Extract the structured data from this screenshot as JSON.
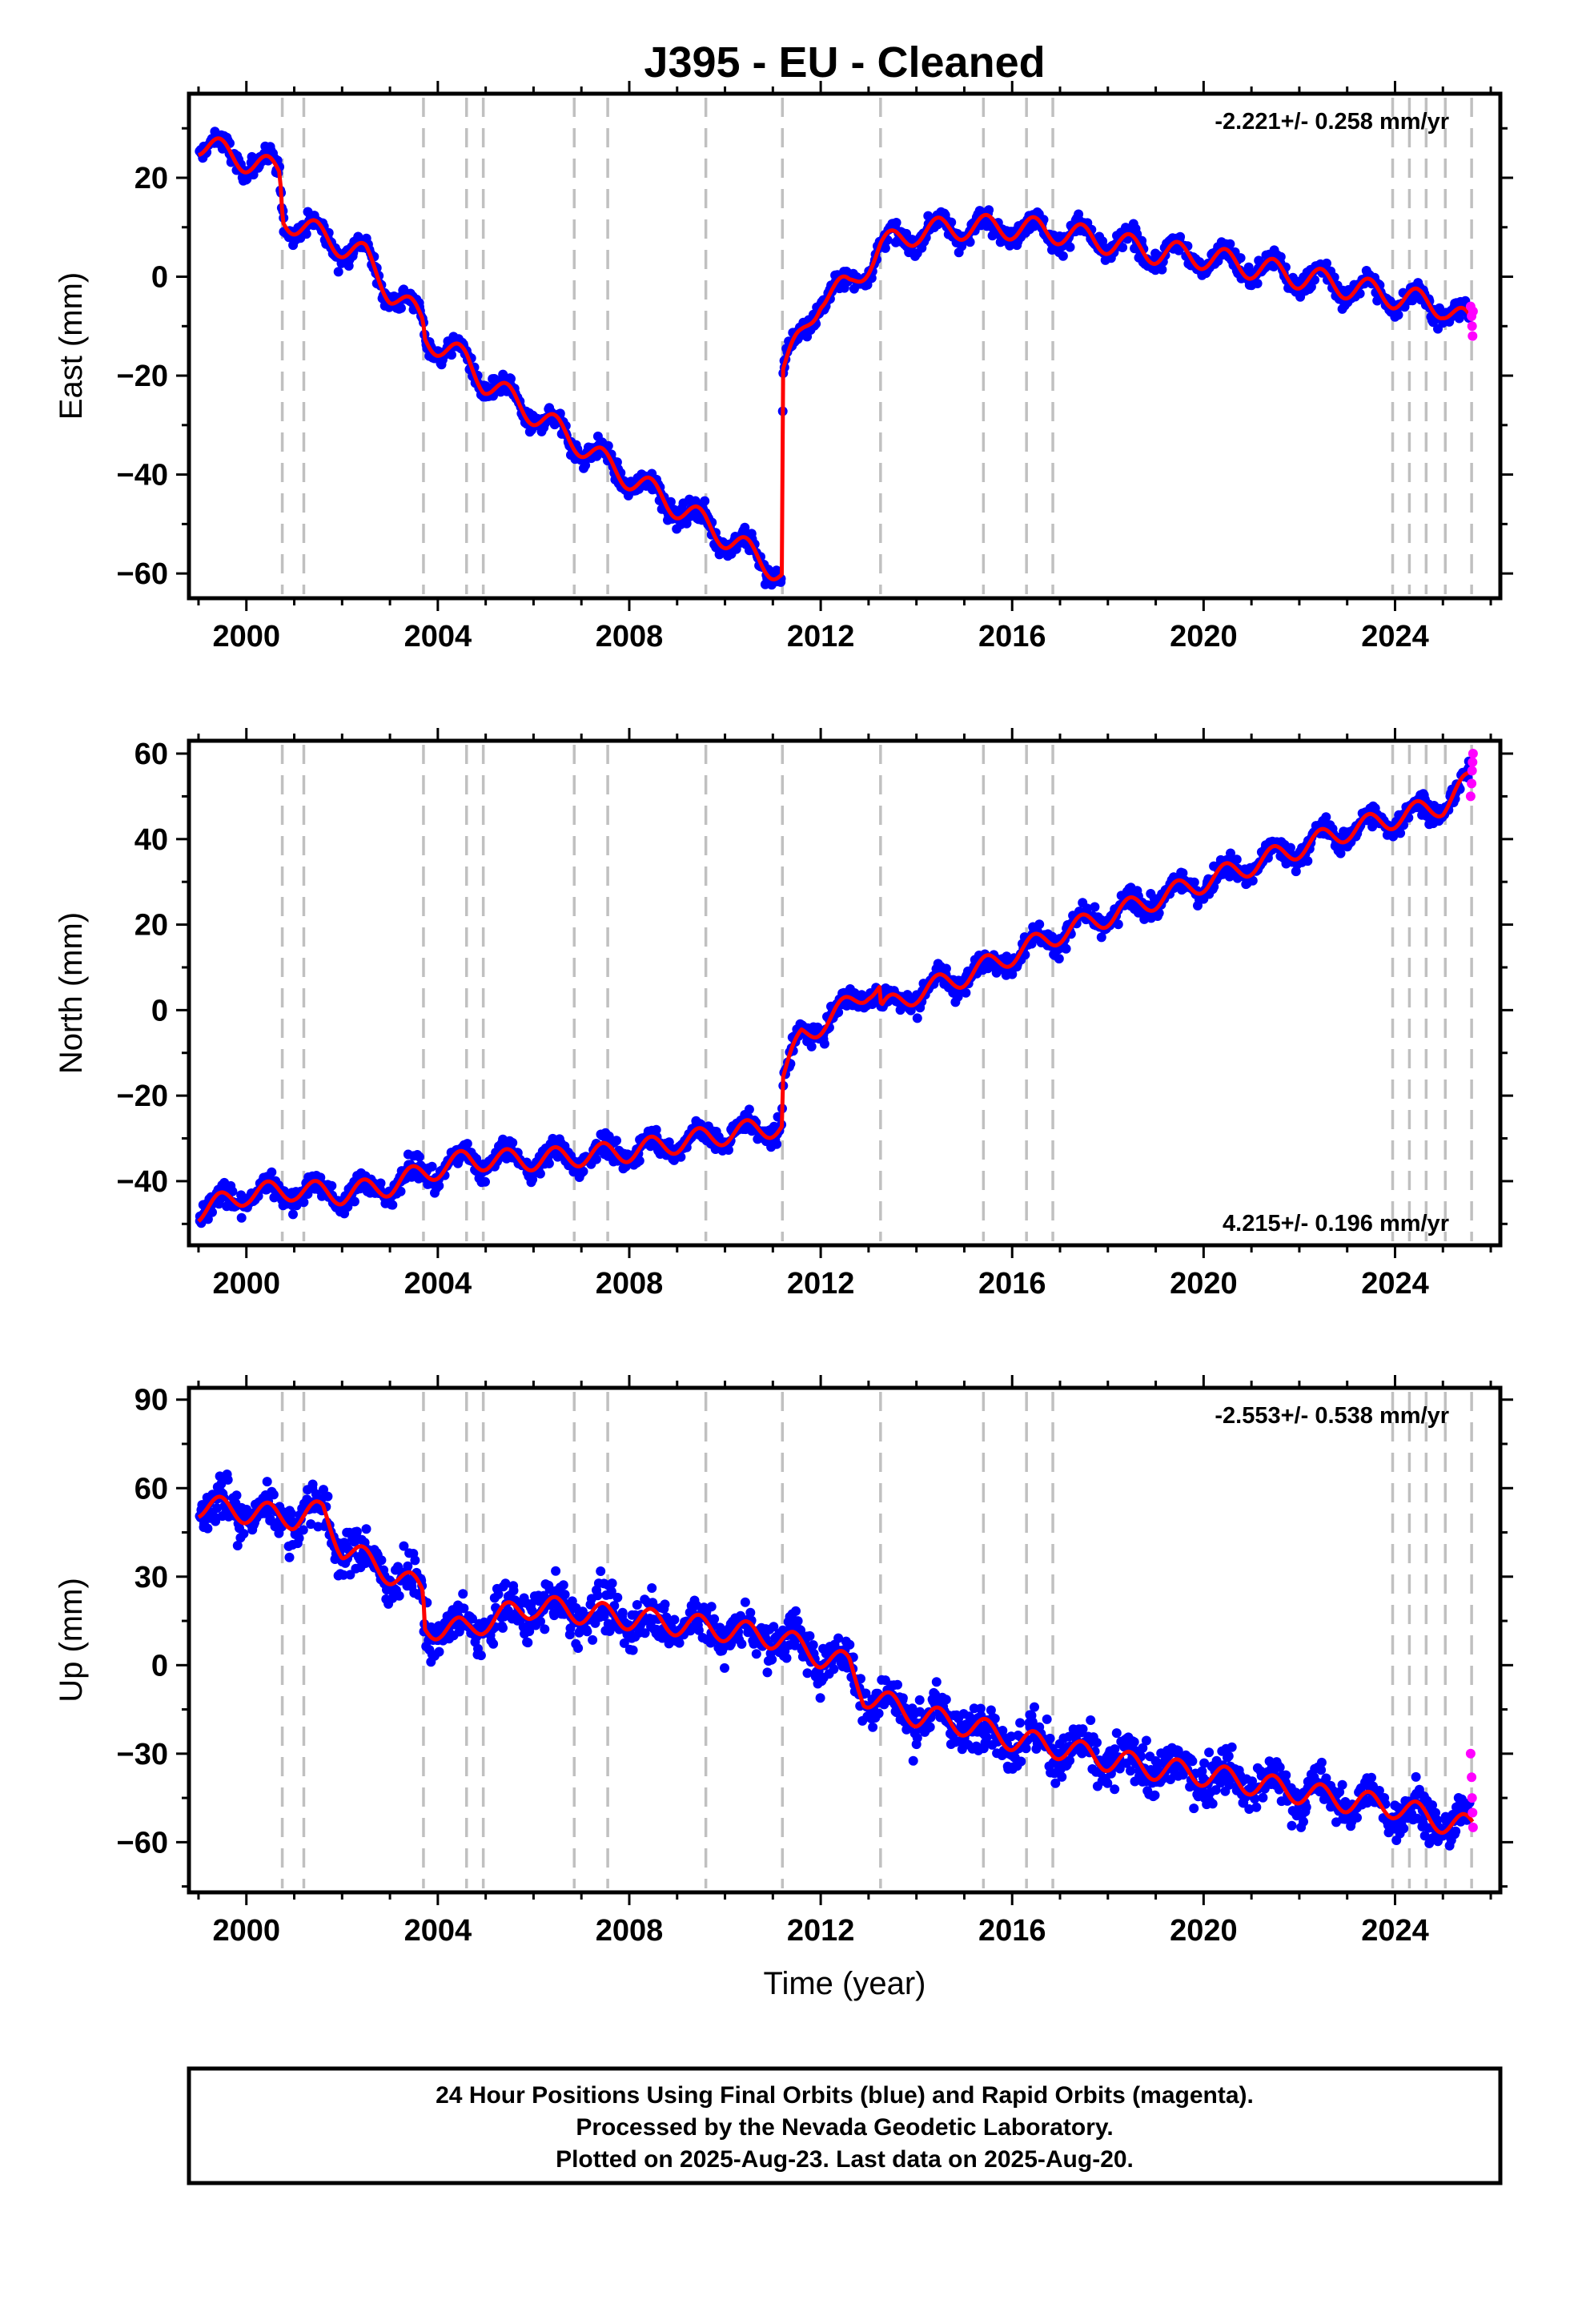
{
  "title": "J395  - EU - Cleaned",
  "x_axis_label": "Time (year)",
  "footer": {
    "lines": [
      "24 Hour Positions Using Final Orbits (blue) and Rapid Orbits (magenta).",
      "Processed by the Nevada Geodetic Laboratory.",
      "Plotted on 2025-Aug-23. Last data on 2025-Aug-20."
    ]
  },
  "colors": {
    "final_orbits": "#0000ff",
    "rapid_orbits": "#ff00ff",
    "model": "#ff0000",
    "event_lines": "#c0c0c0"
  },
  "chart_data": [
    {
      "type": "scatter",
      "component": "East",
      "ylabel": "East (mm)",
      "xlim": [
        1998.8,
        2026.2
      ],
      "ylim": [
        -65,
        37
      ],
      "xticks": [
        2000,
        2004,
        2008,
        2012,
        2016,
        2020,
        2024
      ],
      "yticks": [
        -60,
        -40,
        -20,
        0,
        20
      ],
      "rate_label": "-2.221+/- 0.258 mm/yr",
      "rate_position": "top-right",
      "grid": false,
      "event_lines_years": [
        2000.75,
        2001.2,
        2003.7,
        2004.6,
        2004.95,
        2006.85,
        2007.55,
        2009.6,
        2011.2,
        2013.25,
        2015.4,
        2016.3,
        2016.85,
        2023.95,
        2024.3,
        2024.65,
        2025.05,
        2025.6
      ],
      "model_trend": [
        {
          "x": 1999.0,
          "y": 27
        },
        {
          "x": 2000.7,
          "y": 21
        },
        {
          "x": 2000.76,
          "y": 12
        },
        {
          "x": 2002.5,
          "y": 4
        },
        {
          "x": 2003.0,
          "y": -3
        },
        {
          "x": 2003.7,
          "y": -9
        },
        {
          "x": 2003.71,
          "y": -12
        },
        {
          "x": 2004.6,
          "y": -17
        },
        {
          "x": 2004.95,
          "y": -21
        },
        {
          "x": 2006.85,
          "y": -33
        },
        {
          "x": 2007.55,
          "y": -38
        },
        {
          "x": 2009.6,
          "y": -50
        },
        {
          "x": 2011.19,
          "y": -60
        },
        {
          "x": 2011.21,
          "y": -19
        },
        {
          "x": 2011.6,
          "y": -12
        },
        {
          "x": 2012.0,
          "y": -4
        },
        {
          "x": 2012.6,
          "y": -2
        },
        {
          "x": 2013.25,
          "y": 6
        },
        {
          "x": 2014.0,
          "y": 9
        },
        {
          "x": 2015.0,
          "y": 10
        },
        {
          "x": 2016.0,
          "y": 10
        },
        {
          "x": 2017.0,
          "y": 9
        },
        {
          "x": 2018.0,
          "y": 7
        },
        {
          "x": 2019.0,
          "y": 5
        },
        {
          "x": 2020.0,
          "y": 4
        },
        {
          "x": 2021.0,
          "y": 2
        },
        {
          "x": 2022.0,
          "y": 0
        },
        {
          "x": 2023.0,
          "y": -2
        },
        {
          "x": 2024.0,
          "y": -4
        },
        {
          "x": 2025.0,
          "y": -6
        },
        {
          "x": 2025.6,
          "y": -10
        }
      ],
      "scatter_std_mm": 1.8,
      "seasonal_amp_mm": 2.5,
      "rapid_points": [
        {
          "x": 2025.58,
          "y": -6
        },
        {
          "x": 2025.6,
          "y": -8
        },
        {
          "x": 2025.61,
          "y": -10
        },
        {
          "x": 2025.62,
          "y": -12
        },
        {
          "x": 2025.63,
          "y": -7
        }
      ]
    },
    {
      "type": "scatter",
      "component": "North",
      "ylabel": "North (mm)",
      "xlim": [
        1998.8,
        2026.2
      ],
      "ylim": [
        -55,
        63
      ],
      "xticks": [
        2000,
        2004,
        2008,
        2012,
        2016,
        2020,
        2024
      ],
      "yticks": [
        -40,
        -20,
        0,
        20,
        40,
        60
      ],
      "rate_label": "4.215+/- 0.196 mm/yr",
      "rate_position": "bottom-right",
      "grid": false,
      "event_lines_years": [
        2000.75,
        2001.2,
        2003.7,
        2004.6,
        2004.95,
        2006.85,
        2007.55,
        2009.6,
        2011.2,
        2013.25,
        2015.4,
        2016.3,
        2016.85,
        2023.95,
        2024.3,
        2024.65,
        2025.05,
        2025.6
      ],
      "model_trend": [
        {
          "x": 1999.0,
          "y": -47
        },
        {
          "x": 2000.0,
          "y": -43
        },
        {
          "x": 2001.0,
          "y": -42
        },
        {
          "x": 2002.0,
          "y": -43
        },
        {
          "x": 2003.0,
          "y": -41
        },
        {
          "x": 2003.7,
          "y": -38
        },
        {
          "x": 2004.6,
          "y": -35
        },
        {
          "x": 2006.0,
          "y": -35
        },
        {
          "x": 2008.0,
          "y": -33
        },
        {
          "x": 2010.0,
          "y": -29
        },
        {
          "x": 2011.19,
          "y": -27
        },
        {
          "x": 2011.21,
          "y": -16
        },
        {
          "x": 2011.6,
          "y": -6
        },
        {
          "x": 2012.2,
          "y": -2
        },
        {
          "x": 2013.0,
          "y": 5
        },
        {
          "x": 2013.24,
          "y": 5
        },
        {
          "x": 2013.26,
          "y": 0
        },
        {
          "x": 2014.0,
          "y": 4
        },
        {
          "x": 2015.0,
          "y": 8
        },
        {
          "x": 2016.0,
          "y": 13
        },
        {
          "x": 2017.0,
          "y": 18
        },
        {
          "x": 2018.0,
          "y": 22
        },
        {
          "x": 2019.0,
          "y": 26
        },
        {
          "x": 2020.0,
          "y": 30
        },
        {
          "x": 2021.0,
          "y": 34
        },
        {
          "x": 2022.0,
          "y": 38
        },
        {
          "x": 2023.0,
          "y": 42
        },
        {
          "x": 2024.0,
          "y": 45
        },
        {
          "x": 2025.0,
          "y": 48
        },
        {
          "x": 2025.6,
          "y": 54
        }
      ],
      "scatter_std_mm": 2.2,
      "seasonal_amp_mm": 2.5,
      "rapid_points": [
        {
          "x": 2025.58,
          "y": 50
        },
        {
          "x": 2025.6,
          "y": 53
        },
        {
          "x": 2025.61,
          "y": 56
        },
        {
          "x": 2025.62,
          "y": 58
        },
        {
          "x": 2025.63,
          "y": 60
        }
      ]
    },
    {
      "type": "scatter",
      "component": "Up",
      "ylabel": "Up (mm)",
      "xlim": [
        1998.8,
        2026.2
      ],
      "ylim": [
        -77,
        94
      ],
      "xticks": [
        2000,
        2004,
        2008,
        2012,
        2016,
        2020,
        2024
      ],
      "yticks": [
        -60,
        -30,
        0,
        30,
        60,
        90
      ],
      "rate_label": "-2.553+/- 0.538 mm/yr",
      "rate_position": "top-right",
      "grid": false,
      "event_lines_years": [
        2000.75,
        2001.2,
        2003.7,
        2004.6,
        2004.95,
        2006.85,
        2007.55,
        2009.6,
        2011.2,
        2013.25,
        2015.4,
        2016.3,
        2016.85,
        2023.95,
        2024.3,
        2024.65,
        2025.05,
        2025.6
      ],
      "model_trend": [
        {
          "x": 1999.0,
          "y": 54
        },
        {
          "x": 2000.0,
          "y": 52
        },
        {
          "x": 2001.0,
          "y": 50
        },
        {
          "x": 2001.6,
          "y": 52
        },
        {
          "x": 2002.0,
          "y": 40
        },
        {
          "x": 2002.8,
          "y": 33
        },
        {
          "x": 2003.7,
          "y": 25
        },
        {
          "x": 2003.71,
          "y": 13
        },
        {
          "x": 2004.6,
          "y": 12
        },
        {
          "x": 2005.0,
          "y": 15
        },
        {
          "x": 2006.0,
          "y": 20
        },
        {
          "x": 2007.0,
          "y": 18
        },
        {
          "x": 2008.0,
          "y": 16
        },
        {
          "x": 2009.0,
          "y": 14
        },
        {
          "x": 2010.0,
          "y": 12
        },
        {
          "x": 2011.2,
          "y": 9
        },
        {
          "x": 2012.0,
          "y": 3
        },
        {
          "x": 2012.6,
          "y": 0
        },
        {
          "x": 2012.9,
          "y": -10
        },
        {
          "x": 2013.25,
          "y": -12
        },
        {
          "x": 2014.0,
          "y": -17
        },
        {
          "x": 2015.0,
          "y": -20
        },
        {
          "x": 2016.0,
          "y": -25
        },
        {
          "x": 2017.0,
          "y": -28
        },
        {
          "x": 2018.0,
          "y": -32
        },
        {
          "x": 2019.0,
          "y": -35
        },
        {
          "x": 2020.0,
          "y": -37
        },
        {
          "x": 2021.0,
          "y": -40
        },
        {
          "x": 2022.0,
          "y": -43
        },
        {
          "x": 2023.0,
          "y": -46
        },
        {
          "x": 2024.0,
          "y": -48
        },
        {
          "x": 2025.0,
          "y": -53
        },
        {
          "x": 2025.6,
          "y": -55
        }
      ],
      "scatter_std_mm": 6.5,
      "seasonal_amp_mm": 4,
      "rapid_points": [
        {
          "x": 2025.58,
          "y": -30
        },
        {
          "x": 2025.6,
          "y": -38
        },
        {
          "x": 2025.61,
          "y": -45
        },
        {
          "x": 2025.62,
          "y": -50
        },
        {
          "x": 2025.63,
          "y": -55
        }
      ]
    }
  ]
}
